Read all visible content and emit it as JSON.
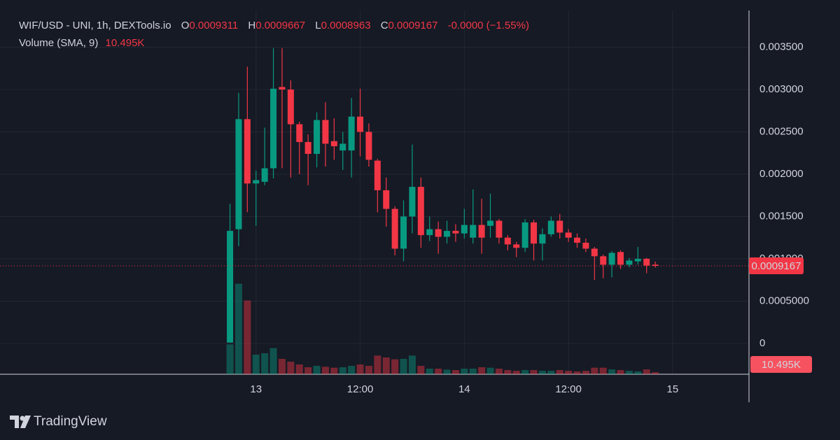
{
  "chart_data": {
    "type": "candlestick",
    "title": "WIF/USD - UNI, 1h, DEXTools.io",
    "legend": {
      "open_label": "O",
      "open": 0.0009311,
      "high_label": "H",
      "high": 0.0009667,
      "low_label": "L",
      "low": 0.0008963,
      "close_label": "C",
      "close": 0.0009167,
      "change": "-0.0000",
      "change_pct": "(−1.55%)"
    },
    "volume_indicator": {
      "name": "Volume (SMA, 9)",
      "value": 10495,
      "value_label": "10.495K"
    },
    "last_price": 0.0009167,
    "x": [
      -3,
      -2,
      -1,
      0,
      1,
      2,
      3,
      4,
      5,
      6,
      7,
      8,
      9,
      10,
      11,
      12,
      13,
      14,
      15,
      16,
      17,
      18,
      19,
      20,
      21,
      22,
      23,
      24,
      25,
      26,
      27,
      28,
      29,
      30,
      31,
      32,
      33,
      34,
      35,
      36,
      37,
      38,
      39,
      40,
      41,
      42,
      43,
      44,
      45,
      46
    ],
    "open": [
      1e-05,
      0.00135,
      0.00265,
      0.00189,
      0.00191,
      0.00207,
      0.00303,
      0.003,
      0.00259,
      0.00238,
      0.00224,
      0.00264,
      0.00239,
      0.00228,
      0.00228,
      0.00268,
      0.0025,
      0.00216,
      0.00181,
      0.00159,
      0.00112,
      0.0015,
      0.00185,
      0.00128,
      0.00135,
      0.00126,
      0.00133,
      0.0013,
      0.00125,
      0.0014,
      0.00139,
      0.00145,
      0.00125,
      0.00117,
      0.00113,
      0.00143,
      0.00118,
      0.00129,
      0.00145,
      0.00131,
      0.00125,
      0.00119,
      0.00112,
      0.00103,
      0.00093,
      0.00108,
      0.00093,
      0.00097,
      0.001,
      0.0009311
    ],
    "high": [
      0.00165,
      0.00296,
      0.00327,
      0.00204,
      0.00255,
      0.00349,
      0.00349,
      0.00311,
      0.00262,
      0.00247,
      0.00273,
      0.00285,
      0.00266,
      0.0025,
      0.0029,
      0.00301,
      0.0026,
      0.00218,
      0.00196,
      0.00162,
      0.00169,
      0.00235,
      0.00196,
      0.0015,
      0.00144,
      0.00145,
      0.00141,
      0.00159,
      0.00182,
      0.00171,
      0.00177,
      0.00147,
      0.00128,
      0.0012,
      0.00147,
      0.00146,
      0.00136,
      0.0015,
      0.00153,
      0.00135,
      0.0013,
      0.00124,
      0.00114,
      0.00105,
      0.00109,
      0.0011,
      0.00101,
      0.00114,
      0.00101,
      0.0009667
    ],
    "low": [
      1e-05,
      0.00115,
      0.00155,
      0.00139,
      0.00187,
      0.00195,
      0.00207,
      0.00196,
      0.002,
      0.00187,
      0.00208,
      0.00209,
      0.00217,
      0.00205,
      0.00196,
      0.00221,
      0.00209,
      0.00155,
      0.00138,
      0.00104,
      0.00097,
      0.0013,
      0.00113,
      0.00121,
      0.00106,
      0.00118,
      0.0012,
      0.00124,
      0.00118,
      0.00106,
      0.00125,
      0.00118,
      0.0011,
      0.00102,
      0.00108,
      0.00098,
      0.00098,
      0.00126,
      0.00124,
      0.0012,
      0.00113,
      0.00108,
      0.00075,
      0.00077,
      0.00078,
      0.00088,
      0.0009,
      0.00093,
      0.00083,
      0.0008963
    ],
    "close": [
      0.00133,
      0.00265,
      0.00189,
      0.00193,
      0.00207,
      0.00301,
      0.003,
      0.00259,
      0.00238,
      0.00224,
      0.00264,
      0.00236,
      0.00233,
      0.00236,
      0.00268,
      0.0025,
      0.00217,
      0.00181,
      0.00159,
      0.00112,
      0.0015,
      0.00185,
      0.00128,
      0.00135,
      0.00126,
      0.00133,
      0.0013,
      0.0014,
      0.0014,
      0.00125,
      0.00145,
      0.00125,
      0.00117,
      0.00113,
      0.00143,
      0.00118,
      0.00129,
      0.00145,
      0.00131,
      0.00125,
      0.00119,
      0.00112,
      0.00103,
      0.00093,
      0.00107,
      0.00093,
      0.00098,
      0.001,
      0.00092,
      0.0009167
    ],
    "volume": [
      32000,
      97000,
      79000,
      21000,
      22500,
      28000,
      16500,
      13500,
      10500,
      7500,
      9000,
      8000,
      7000,
      7500,
      9000,
      10500,
      9000,
      20000,
      18000,
      16000,
      16500,
      20000,
      9000,
      6000,
      6000,
      5000,
      4500,
      6000,
      6000,
      7500,
      7000,
      6000,
      4500,
      3700,
      4500,
      4500,
      3700,
      3700,
      4500,
      3700,
      3000,
      3700,
      7000,
      7000,
      5200,
      4500,
      3700,
      3000,
      5200,
      2200
    ],
    "up_color": "#089981",
    "down_color": "#f23645",
    "xlim": [
      -29.5,
      56.8
    ],
    "xticks": [
      {
        "value": 0,
        "label": "13"
      },
      {
        "value": 12,
        "label": "12:00"
      },
      {
        "value": 24,
        "label": "14"
      },
      {
        "value": 36,
        "label": "12:00"
      },
      {
        "value": 48,
        "label": "15"
      }
    ],
    "ylim": [
      -0.000364,
      0.003934
    ],
    "yticks": [
      {
        "value": 0.0035,
        "label": "0.003500"
      },
      {
        "value": 0.003,
        "label": "0.003000"
      },
      {
        "value": 0.0025,
        "label": "0.002500"
      },
      {
        "value": 0.002,
        "label": "0.002000"
      },
      {
        "value": 0.0015,
        "label": "0.001500"
      },
      {
        "value": 0.001,
        "label": "0.001000"
      },
      {
        "value": 0.0005,
        "label": "0.0005000"
      },
      0
    ],
    "volume_ylim": [
      0,
      389800
    ],
    "grid": true,
    "watermark": "TradingView"
  }
}
